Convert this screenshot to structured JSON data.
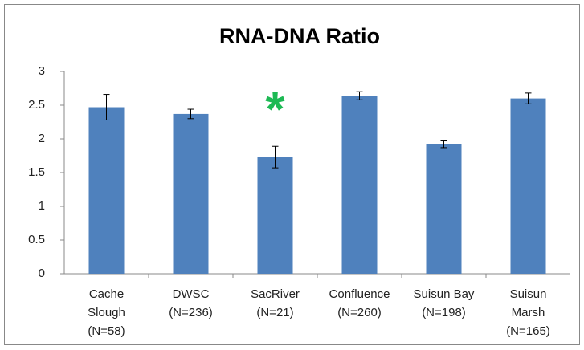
{
  "chart_data": {
    "type": "bar",
    "title": "RNA-DNA Ratio",
    "categories": [
      [
        "Cache",
        "Slough",
        "(N=58)"
      ],
      [
        "DWSC",
        "(N=236)"
      ],
      [
        "SacRiver",
        "(N=21)"
      ],
      [
        "Confluence",
        "(N=260)"
      ],
      [
        "Suisun Bay",
        "(N=198)"
      ],
      [
        "Suisun",
        "Marsh",
        "(N=165)"
      ]
    ],
    "values": [
      2.47,
      2.37,
      1.73,
      2.64,
      1.92,
      2.6
    ],
    "errors": [
      0.19,
      0.07,
      0.16,
      0.06,
      0.05,
      0.08
    ],
    "color": "#4f81bd",
    "error_color": "#000000",
    "ylim": [
      0,
      3
    ],
    "yticks": [
      0,
      0.5,
      1,
      1.5,
      2,
      2.5,
      3
    ],
    "grid": false,
    "annotations": [
      {
        "text": "*",
        "category": 2,
        "y": 2.52,
        "color": "#1db954"
      }
    ]
  }
}
